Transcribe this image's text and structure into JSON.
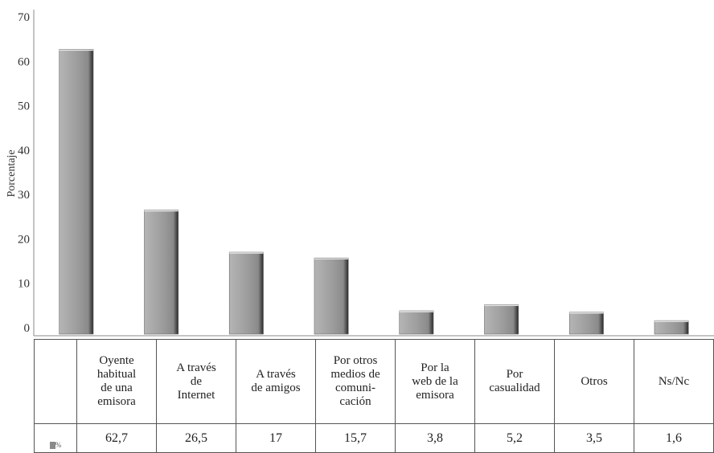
{
  "chart_data": {
    "type": "bar",
    "title": "",
    "xlabel": "",
    "ylabel": "Porcentaje",
    "ylim": [
      0,
      70
    ],
    "yticks": [
      0,
      10,
      20,
      30,
      40,
      50,
      60,
      70
    ],
    "grid": false,
    "categories": [
      "Oyente\nhabitual\nde una\nemisora",
      "A través\nde\nInternet",
      "A través\nde amigos",
      "Por otros\nmedios de\ncomuni-\ncación",
      "Por la\nweb de la\nemisora",
      "Por\ncasualidad",
      "Otros",
      "Ns/Nc"
    ],
    "values": [
      62.7,
      26.5,
      17,
      15.7,
      3.8,
      5.2,
      3.5,
      1.6
    ],
    "value_labels": [
      "62,7",
      "26,5",
      "17",
      "15,7",
      "3,8",
      "5,2",
      "3,5",
      "1,6"
    ],
    "legend": "%",
    "bar_color": "#9a9a9a"
  }
}
